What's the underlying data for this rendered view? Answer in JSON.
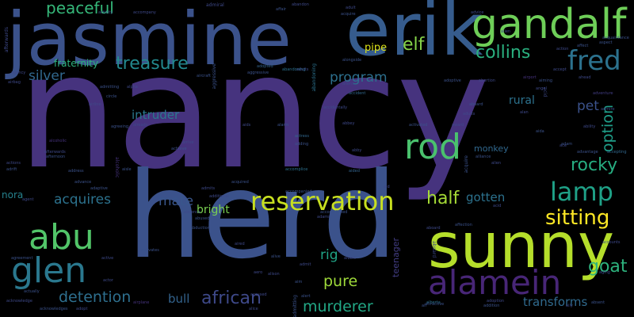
{
  "cloud": {
    "background": "#000000",
    "words": {
      "nancy": {
        "text": "nancy",
        "color": "#46337e"
      },
      "herd": {
        "text": "herd",
        "color": "#3b528b"
      },
      "jasmine": {
        "text": "jasmine",
        "color": "#3b528b"
      },
      "erik": {
        "text": "erik",
        "color": "#365c8d"
      },
      "sunny": {
        "text": "sunny",
        "color": "#b5de2b"
      },
      "gandalf": {
        "text": "gandalf",
        "color": "#6ece58"
      },
      "fred": {
        "text": "fred",
        "color": "#2c728e"
      },
      "alamein": {
        "text": "alamein",
        "color": "#482677"
      },
      "rod": {
        "text": "rod",
        "color": "#4ac16d"
      },
      "abu": {
        "text": "abu",
        "color": "#52c569"
      },
      "glen": {
        "text": "glen",
        "color": "#2a788e"
      },
      "reservation": {
        "text": "reservation",
        "color": "#c8e020"
      },
      "lamp": {
        "text": "lamp",
        "color": "#1fa187"
      },
      "treasure": {
        "text": "treasure",
        "color": "#23898e"
      },
      "collins": {
        "text": "collins",
        "color": "#2ab07f"
      },
      "elf": {
        "text": "elf",
        "color": "#86d549"
      },
      "peaceful": {
        "text": "peaceful",
        "color": "#35b779"
      },
      "sitting": {
        "text": "sitting",
        "color": "#fde725"
      },
      "goat": {
        "text": "goat",
        "color": "#2db27d"
      },
      "rocky": {
        "text": "rocky",
        "color": "#27ad81"
      },
      "half": {
        "text": "half",
        "color": "#a5db36"
      },
      "african": {
        "text": "african",
        "color": "#3e4989"
      },
      "detention": {
        "text": "detention",
        "color": "#2e6f8e"
      },
      "murderer": {
        "text": "murderer",
        "color": "#22a785"
      },
      "pure": {
        "text": "pure",
        "color": "#9fda3a"
      },
      "option": {
        "text": "option",
        "color": "#1f9e89"
      },
      "silver": {
        "text": "silver",
        "color": "#31688e"
      },
      "program": {
        "text": "program",
        "color": "#2d708e"
      },
      "acquires": {
        "text": "acquires",
        "color": "#2c728e"
      },
      "mate": {
        "text": "mate",
        "color": "#39568c"
      },
      "bright": {
        "text": "bright",
        "color": "#7ad151"
      },
      "intruder": {
        "text": "intruder",
        "color": "#2a788e"
      },
      "pet": {
        "text": "pet",
        "color": "#3b528b"
      },
      "bull": {
        "text": "bull",
        "color": "#33638d"
      },
      "rig": {
        "text": "rig",
        "color": "#20a386"
      },
      "gotten": {
        "text": "gotten",
        "color": "#2c728e"
      },
      "transforms": {
        "text": "transforms",
        "color": "#306a8e"
      },
      "fraternity": {
        "text": "fraternity",
        "color": "#2db27d"
      },
      "rural": {
        "text": "rural",
        "color": "#2c728e"
      },
      "pipe": {
        "text": "pipe",
        "color": "#dde318"
      },
      "nora": {
        "text": "nora",
        "color": "#26828e"
      },
      "teenager": {
        "text": "teenager",
        "color": "#433e85"
      },
      "monkey": {
        "text": "monkey",
        "color": "#31688e"
      },
      "admiral": {
        "text": "admiral",
        "color": "#3e4989"
      },
      "alongside": {
        "text": "alongside",
        "color": "#3b528b"
      },
      "aliens": {
        "text": "aliens",
        "color": "#3e4989"
      },
      "adopted": {
        "text": "adopted",
        "color": "#33638d"
      },
      "aggressive": {
        "text": "aggressive",
        "color": "#3b528b"
      },
      "abandoning": {
        "text": "abandoning",
        "color": "#2c728e"
      },
      "accident": {
        "text": "accident",
        "color": "#31688e"
      },
      "airbag": {
        "text": "airbag",
        "color": "#3e4989"
      },
      "activated": {
        "text": "activated",
        "color": "#3b528b"
      },
      "award": {
        "text": "award",
        "color": "#3e4989"
      },
      "alcoholic": {
        "text": "alcoholic",
        "color": "#46337e"
      },
      "actress": {
        "text": "actress",
        "color": "#31688e"
      },
      "adding": {
        "text": "adding",
        "color": "#3b528b"
      },
      "abby": {
        "text": "abby",
        "color": "#3e4989"
      },
      "aided": {
        "text": "aided",
        "color": "#33638d"
      },
      "accomplice": {
        "text": "accomplice",
        "color": "#2c728e"
      },
      "alpha": {
        "text": "alpha",
        "color": "#3e4989"
      },
      "admitting": {
        "text": "admitting",
        "color": "#3b528b"
      },
      "abortion": {
        "text": "abortion",
        "color": "#3e4989"
      },
      "airport": {
        "text": "airport",
        "color": "#46337e"
      },
      "aiming": {
        "text": "aiming",
        "color": "#3b528b"
      },
      "accept": {
        "text": "accept",
        "color": "#3e4989"
      },
      "adventure": {
        "text": "adventure",
        "color": "#433e85"
      },
      "advantage": {
        "text": "advantage",
        "color": "#3b528b"
      },
      "accepting": {
        "text": "accepting",
        "color": "#31688e"
      },
      "acquired": {
        "text": "acquired",
        "color": "#3b528b"
      },
      "alien": {
        "text": "alien",
        "color": "#3e4989"
      },
      "acquire": {
        "text": "acquire",
        "color": "#3b528b"
      },
      "adult": {
        "text": "adult",
        "color": "#3e4989"
      },
      "adaptive": {
        "text": "adaptive",
        "color": "#3b528b"
      },
      "adoption": {
        "text": "adoption",
        "color": "#3e4989"
      },
      "address": {
        "text": "address",
        "color": "#3b528b"
      },
      "absence": {
        "text": "absence",
        "color": "#3e4989"
      },
      "agent": {
        "text": "agent",
        "color": "#3e4989"
      },
      "affection": {
        "text": "affection",
        "color": "#3b528b"
      },
      "alberta": {
        "text": "alberta",
        "color": "#2c728e"
      },
      "aging": {
        "text": "aging",
        "color": "#3e4989"
      },
      "agreement": {
        "text": "agreement",
        "color": "#3b528b"
      },
      "actor": {
        "text": "actor",
        "color": "#3e4989"
      },
      "activates": {
        "text": "activates",
        "color": "#3b528b"
      },
      "aired": {
        "text": "aired",
        "color": "#3e4989"
      },
      "admit": {
        "text": "admit",
        "color": "#3e4989"
      },
      "airbus": {
        "text": "airbus",
        "color": "#3b528b"
      },
      "albert": {
        "text": "albert",
        "color": "#3e4989"
      },
      "abduction": {
        "text": "abduction",
        "color": "#3b528b"
      },
      "ability": {
        "text": "ability",
        "color": "#3e4989"
      },
      "actually": {
        "text": "actually",
        "color": "#3b528b"
      },
      "alice": {
        "text": "alice",
        "color": "#3e4989"
      },
      "airplane": {
        "text": "airplane",
        "color": "#46337e"
      },
      "adopt": {
        "text": "adopt",
        "color": "#3e4989"
      },
      "addition": {
        "text": "addition",
        "color": "#3b528b"
      },
      "acknowledge": {
        "text": "acknowledge",
        "color": "#3e4989"
      },
      "acknowledges": {
        "text": "acknowledges",
        "color": "#3b528b"
      },
      "afterwards": {
        "text": "afterwards",
        "color": "#3e4989"
      },
      "aisle": {
        "text": "aisle",
        "color": "#3b528b"
      },
      "ahead": {
        "text": "ahead",
        "color": "#3e4989"
      },
      "aids": {
        "text": "aids",
        "color": "#3e4989"
      },
      "aircraft": {
        "text": "aircraft",
        "color": "#3b528b"
      },
      "aboard": {
        "text": "aboard",
        "color": "#3e4989"
      },
      "adam": {
        "text": "adam",
        "color": "#3b528b"
      },
      "active": {
        "text": "active",
        "color": "#3e4989"
      },
      "adults": {
        "text": "adults",
        "color": "#3e4989"
      },
      "affair": {
        "text": "affair",
        "color": "#3b528b"
      },
      "attractive": {
        "text": "attractive",
        "color": "#3b528b"
      },
      "abandon": {
        "text": "abandon",
        "color": "#3e4989"
      },
      "activity": {
        "text": "activity",
        "color": "#3b528b"
      },
      "advice": {
        "text": "advice",
        "color": "#3e4989"
      },
      "ace": {
        "text": "ace",
        "color": "#3e4989"
      },
      "alarm": {
        "text": "alarm",
        "color": "#3b528b"
      },
      "alison": {
        "text": "alison",
        "color": "#3e4989"
      },
      "agency": {
        "text": "agency",
        "color": "#3e4989"
      },
      "alive": {
        "text": "alive",
        "color": "#3b528b"
      },
      "abby2": {
        "text": "abbey",
        "color": "#3e4989"
      },
      "aim": {
        "text": "aim",
        "color": "#3b528b"
      },
      "accompany": {
        "text": "accompany",
        "color": "#3e4989"
      },
      "aid": {
        "text": "aid",
        "color": "#3e4989"
      },
      "afternoon": {
        "text": "afternoon",
        "color": "#3b528b"
      },
      "ally": {
        "text": "ally",
        "color": "#3e4989"
      },
      "acid": {
        "text": "acid",
        "color": "#3e4989"
      },
      "aspect": {
        "text": "aspect",
        "color": "#3b528b"
      },
      "admire": {
        "text": "admire",
        "color": "#3e4989"
      },
      "acquaintance": {
        "text": "acquaintance",
        "color": "#3b528b"
      },
      "accounts": {
        "text": "accounts",
        "color": "#3e4989"
      },
      "advance": {
        "text": "advance",
        "color": "#3b528b"
      },
      "actions": {
        "text": "actions",
        "color": "#3e4989"
      },
      "adrift": {
        "text": "adrift",
        "color": "#3b528b"
      },
      "alien2": {
        "text": "alien",
        "color": "#3e4989"
      },
      "alliance": {
        "text": "alliance",
        "color": "#3b528b"
      },
      "adults2": {
        "text": "adults",
        "color": "#3e4989"
      },
      "aboards": {
        "text": "aboard",
        "color": "#3b528b"
      },
      "angel": {
        "text": "angel",
        "color": "#3e4989"
      },
      "aida": {
        "text": "aida",
        "color": "#3b528b"
      },
      "alan": {
        "text": "alan",
        "color": "#3e4989"
      },
      "agreeing": {
        "text": "agreeing",
        "color": "#3b528b"
      },
      "already": {
        "text": "already",
        "color": "#3e4989"
      },
      "achieve": {
        "text": "achieve",
        "color": "#3b528b"
      },
      "arrive": {
        "text": "arrive",
        "color": "#3e4989"
      },
      "circle": {
        "text": "circle",
        "color": "#3b528b"
      },
      "airline": {
        "text": "airline",
        "color": "#3e4989"
      },
      "abused": {
        "text": "abused",
        "color": "#3b528b"
      },
      "admits": {
        "text": "admits",
        "color": "#3e4989"
      },
      "accompanied": {
        "text": "accompanied",
        "color": "#3b528b"
      },
      "adams": {
        "text": "adams",
        "color": "#3e4989"
      },
      "accomplice2": {
        "text": "accomplished",
        "color": "#3b528b"
      },
      "accidental": {
        "text": "accidentally",
        "color": "#3e4989"
      },
      "affect": {
        "text": "affect",
        "color": "#3b528b"
      },
      "action": {
        "text": "action",
        "color": "#3e4989"
      },
      "alert": {
        "text": "alert",
        "color": "#3b528b"
      },
      "additional": {
        "text": "additional",
        "color": "#3e4989"
      },
      "adoptive": {
        "text": "adoptive",
        "color": "#3b528b"
      },
      "aero": {
        "text": "aero",
        "color": "#3e4989"
      },
      "absent": {
        "text": "absent",
        "color": "#3b528b"
      },
      "accused": {
        "text": "accused",
        "color": "#3e4989"
      },
      "air": {
        "text": "air",
        "color": "#3b528b"
      }
    }
  }
}
